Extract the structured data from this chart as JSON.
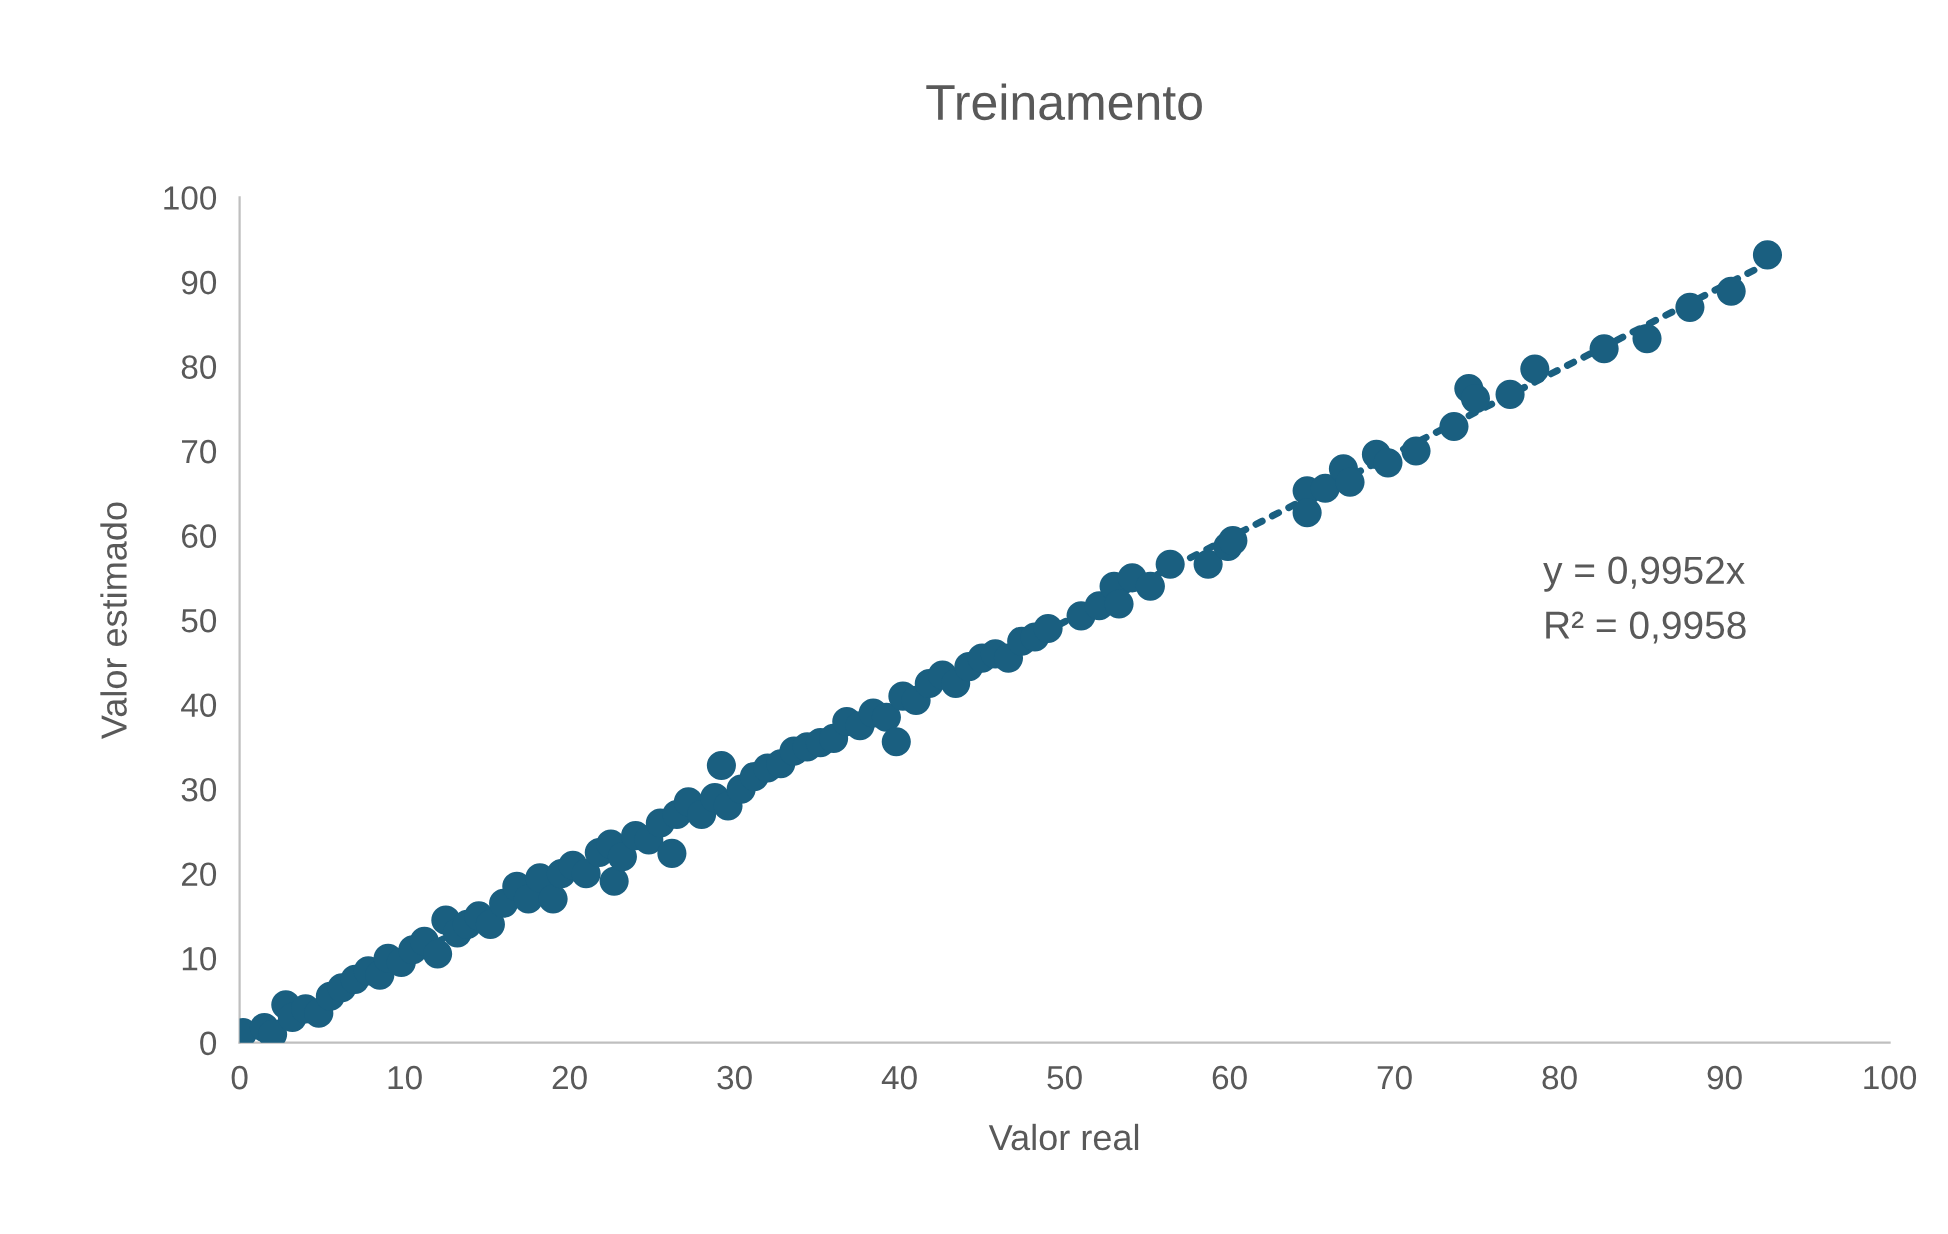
{
  "chart_data": {
    "type": "scatter",
    "title": "Treinamento",
    "xlabel": "Valor real",
    "ylabel": "Valor estimado",
    "xlim": [
      0,
      100
    ],
    "ylim": [
      0,
      100
    ],
    "xticks": [
      0,
      10,
      20,
      30,
      40,
      50,
      60,
      70,
      80,
      90,
      100
    ],
    "yticks": [
      0,
      10,
      20,
      30,
      40,
      50,
      60,
      70,
      80,
      90,
      100
    ],
    "grid": false,
    "legend": false,
    "annotations": [
      "y = 0,9952x",
      "R² = 0,9958"
    ],
    "series": [
      {
        "color": "#1a5f80",
        "marker": "circle",
        "x": [
          0.2,
          1.5,
          2.0,
          2.8,
          3.2,
          4.0,
          4.8,
          5.5,
          6.2,
          7.0,
          7.8,
          8.5,
          9.0,
          9.8,
          10.5,
          11.2,
          12.0,
          12.5,
          13.2,
          13.8,
          14.5,
          15.2,
          16.0,
          16.8,
          17.5,
          18.2,
          19.0,
          19.5,
          20.2,
          21.0,
          21.8,
          22.5,
          22.7,
          23.2,
          24.0,
          24.8,
          25.5,
          26.2,
          26.5,
          27.2,
          28.0,
          28.8,
          29.2,
          29.6,
          30.4,
          31.2,
          32.0,
          32.8,
          33.6,
          34.4,
          35.2,
          36.0,
          36.8,
          37.6,
          38.4,
          39.2,
          39.8,
          40.2,
          41.0,
          41.8,
          42.6,
          43.4,
          44.2,
          45.0,
          45.8,
          46.6,
          47.4,
          48.2,
          49.0,
          51.0,
          52.1,
          53.0,
          53.3,
          54.1,
          55.2,
          56.4,
          58.7,
          59.9,
          60.2,
          64.7,
          64.7,
          65.8,
          66.9,
          67.3,
          68.9,
          69.6,
          71.3,
          73.6,
          74.5,
          74.9,
          77.0,
          78.5,
          82.7,
          85.3,
          87.9,
          90.4,
          92.6
        ],
        "values": [
          1.2,
          1.8,
          1.0,
          4.5,
          3.0,
          4.0,
          3.5,
          5.5,
          6.5,
          7.5,
          8.5,
          8.0,
          10.0,
          9.5,
          11.0,
          12.0,
          10.5,
          14.5,
          13.0,
          14.0,
          15.0,
          14.0,
          16.5,
          18.5,
          17.0,
          19.5,
          17.0,
          20.0,
          21.0,
          20.0,
          22.5,
          23.5,
          19.1,
          22.0,
          24.5,
          24.0,
          26.0,
          22.4,
          27.0,
          28.5,
          27.0,
          29.0,
          32.8,
          28.0,
          30.0,
          31.5,
          32.5,
          33.0,
          34.5,
          35.0,
          35.5,
          36.0,
          38.0,
          37.5,
          39.0,
          38.5,
          35.6,
          41.0,
          40.5,
          42.5,
          43.5,
          42.5,
          44.5,
          45.5,
          46.0,
          45.5,
          47.5,
          48.0,
          49.0,
          50.5,
          51.7,
          54.0,
          51.9,
          55.0,
          54.0,
          56.6,
          56.6,
          58.7,
          59.4,
          65.3,
          62.7,
          65.6,
          67.9,
          66.3,
          69.6,
          68.6,
          70.0,
          72.9,
          77.4,
          76.2,
          76.7,
          79.7,
          82.1,
          83.3,
          87.0,
          88.9,
          93.2
        ]
      },
      {
        "type": "line",
        "color": "#1a5f80",
        "line_style": "dotted",
        "marker": "none",
        "x": [
          0,
          92.6
        ],
        "values": [
          0,
          92.2
        ]
      }
    ]
  }
}
